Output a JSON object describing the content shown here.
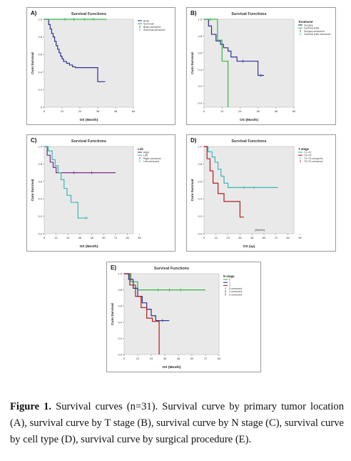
{
  "figure": {
    "caption_label": "Figure 1.",
    "caption_text": " Survival curves (n=31). Survival curve by primary tumor location (A), survival curve by T stage (B), survival curve by N stage (C), survival curve by cell type (D), survival curve by surgical procedure (E)."
  },
  "colors": {
    "navy": "#2e3192",
    "green": "#39b54a",
    "purple": "#7a2b8c",
    "teal": "#3fb6b4",
    "darkred": "#b01e23",
    "gray_bg": "#e9e9e9"
  },
  "chart_data": [
    {
      "id": "A",
      "panel_label": "A)",
      "type": "line",
      "step": true,
      "title": "Survival Functions",
      "xlabel": "OS (Month)",
      "ylabel": "Cum Survival",
      "xlim": [
        0,
        60
      ],
      "ylim": [
        0,
        1.0
      ],
      "xticks": [
        "0",
        "12",
        "24",
        "36",
        "48",
        "60"
      ],
      "yticks": [
        "0",
        "0.2",
        "0.4",
        "0.6",
        "0.8",
        "1.0"
      ],
      "legend_title": "",
      "legend": [
        "Brain",
        "Sunrenal",
        "Brain-censored",
        "Sunrenal-censored"
      ],
      "series": [
        {
          "name": "Brain",
          "color": "#2e3192",
          "x": [
            0,
            3,
            4,
            5,
            6,
            7,
            8,
            9,
            10,
            11,
            12,
            13,
            15,
            17,
            19,
            21,
            24,
            36,
            41
          ],
          "y": [
            1.0,
            0.94,
            0.89,
            0.84,
            0.8,
            0.75,
            0.7,
            0.66,
            0.62,
            0.58,
            0.55,
            0.52,
            0.5,
            0.48,
            0.46,
            0.45,
            0.45,
            0.29,
            0.29
          ],
          "censored": []
        },
        {
          "name": "Sunrenal",
          "color": "#39b54a",
          "x": [
            0,
            42
          ],
          "y": [
            1.0,
            1.0
          ],
          "censored": [
            [
              14,
              1.0
            ],
            [
              20,
              1.0
            ],
            [
              27,
              1.0
            ],
            [
              33,
              1.0
            ]
          ]
        }
      ]
    },
    {
      "id": "B",
      "panel_label": "B)",
      "type": "line",
      "step": true,
      "title": "Survival Functions",
      "xlabel": "OS (Month)",
      "ylabel": "Cum Survival",
      "xlim": [
        0,
        60
      ],
      "ylim": [
        -0.05,
        1.0
      ],
      "xticks": [
        "0",
        "12",
        "24",
        "36",
        "48",
        "60"
      ],
      "yticks": [
        "0.0",
        "0.2",
        "0.4",
        "0.6",
        "0.8",
        "1.0"
      ],
      "legend_title": "Treatment",
      "legend": [
        "Surgery",
        "Gamma knife",
        "Surgery-censored",
        "Gamma knife-censored"
      ],
      "series": [
        {
          "name": "Surgery",
          "color": "#2e3192",
          "x": [
            0,
            3,
            5,
            8,
            11,
            13,
            16,
            18,
            22,
            30,
            36,
            40
          ],
          "y": [
            1.0,
            0.92,
            0.82,
            0.74,
            0.7,
            0.66,
            0.62,
            0.55,
            0.5,
            0.5,
            0.33,
            0.33
          ],
          "censored": [
            [
              26,
              0.5
            ],
            [
              38,
              0.33
            ]
          ]
        },
        {
          "name": "Gamma knife",
          "color": "#39b54a",
          "x": [
            0,
            9,
            12,
            15,
            16
          ],
          "y": [
            1.0,
            0.75,
            0.5,
            0.5,
            -0.05
          ],
          "censored": [
            [
              4,
              1.0
            ]
          ]
        }
      ]
    },
    {
      "id": "C",
      "panel_label": "C)",
      "type": "line",
      "step": true,
      "title": "Survival Functions",
      "xlabel": "OS (Month)",
      "ylabel": "Cum Survival",
      "xlim": [
        0,
        90
      ],
      "ylim": [
        0,
        1.0
      ],
      "xticks": [
        "0",
        "12",
        "24",
        "36",
        "48",
        "60",
        "72",
        "84",
        "96"
      ],
      "yticks": [
        "0.0",
        "0.2",
        "0.4",
        "0.6",
        "0.8",
        "1.0"
      ],
      "legend_title": "Lob",
      "legend": [
        "Right",
        "Left",
        "Right-censored",
        "Left-censored"
      ],
      "series": [
        {
          "name": "Right",
          "color": "#7a2b8c",
          "x": [
            0,
            3,
            6,
            9,
            12,
            72
          ],
          "y": [
            1.0,
            0.9,
            0.82,
            0.76,
            0.7,
            0.7
          ],
          "censored": [
            [
              30,
              0.7
            ],
            [
              48,
              0.7
            ]
          ]
        },
        {
          "name": "Left",
          "color": "#3fb6b4",
          "x": [
            0,
            4,
            8,
            11,
            14,
            17,
            20,
            23,
            27,
            34,
            38,
            44
          ],
          "y": [
            1.0,
            0.95,
            0.85,
            0.78,
            0.7,
            0.62,
            0.52,
            0.44,
            0.36,
            0.18,
            0.18,
            0.18
          ],
          "censored": [
            [
              42,
              0.18
            ]
          ]
        }
      ]
    },
    {
      "id": "D",
      "panel_label": "D)",
      "type": "line",
      "step": true,
      "title": "Survival Functions",
      "xlabel": "OS (ay)",
      "ylabel": "Cum Survival",
      "inner_label": "(Month)",
      "xlim": [
        0,
        90
      ],
      "ylim": [
        0,
        1.0
      ],
      "xticks": [
        "0",
        "12",
        "24",
        "36",
        "48",
        "60",
        "72",
        "84",
        "96"
      ],
      "yticks": [
        "0.0",
        "0.2",
        "0.4",
        "0.6",
        "0.8",
        "1.0"
      ],
      "legend_title": "T stage",
      "legend": [
        "T1+T2",
        "T3+T4",
        "T1+T2-censored",
        "T3+T4-censored"
      ],
      "series": [
        {
          "name": "T1+T2",
          "color": "#3fb6b4",
          "x": [
            0,
            4,
            8,
            11,
            14,
            17,
            20,
            24,
            28,
            74
          ],
          "y": [
            1.0,
            0.94,
            0.88,
            0.82,
            0.74,
            0.66,
            0.58,
            0.53,
            0.53,
            0.53
          ],
          "censored": [
            [
              40,
              0.53
            ],
            [
              50,
              0.53
            ]
          ]
        },
        {
          "name": "T3+T4",
          "color": "#b01e23",
          "x": [
            0,
            3,
            6,
            9,
            14,
            20,
            36,
            40
          ],
          "y": [
            1.0,
            0.86,
            0.72,
            0.58,
            0.46,
            0.37,
            0.19,
            0.19
          ],
          "censored": []
        }
      ]
    },
    {
      "id": "E",
      "panel_label": "E)",
      "type": "line",
      "step": true,
      "title": "Survival Functions",
      "xlabel": "OS (Month)",
      "ylabel": "Cum Survival",
      "xlim": [
        0,
        84
      ],
      "ylim": [
        0,
        1.0
      ],
      "xticks": [
        "0",
        "12",
        "24",
        "36",
        "48",
        "60",
        "72",
        "84"
      ],
      "yticks": [
        "0.0",
        "0.2",
        "0.4",
        "0.6",
        "0.8",
        "1.0"
      ],
      "legend_title": "N stage",
      "legend": [
        "0",
        "1",
        "2",
        "0-censored",
        "1-censored",
        "2-censored"
      ],
      "series": [
        {
          "name": "0",
          "color": "#39b54a",
          "x": [
            0,
            6,
            12,
            72
          ],
          "y": [
            1.0,
            0.9,
            0.8,
            0.8
          ],
          "censored": [
            [
              30,
              0.8
            ],
            [
              40,
              0.8
            ],
            [
              50,
              0.8
            ]
          ]
        },
        {
          "name": "1",
          "color": "#2e3192",
          "x": [
            0,
            4,
            8,
            12,
            16,
            20,
            24,
            28,
            40
          ],
          "y": [
            1.0,
            0.93,
            0.82,
            0.72,
            0.64,
            0.56,
            0.48,
            0.42,
            0.42
          ],
          "censored": [
            [
              34,
              0.42
            ]
          ]
        },
        {
          "name": "2",
          "color": "#b01e23",
          "x": [
            0,
            5,
            10,
            15,
            20,
            25,
            30,
            31
          ],
          "y": [
            1.0,
            0.86,
            0.72,
            0.58,
            0.45,
            0.41,
            0.41,
            0.0
          ],
          "censored": []
        }
      ]
    }
  ]
}
